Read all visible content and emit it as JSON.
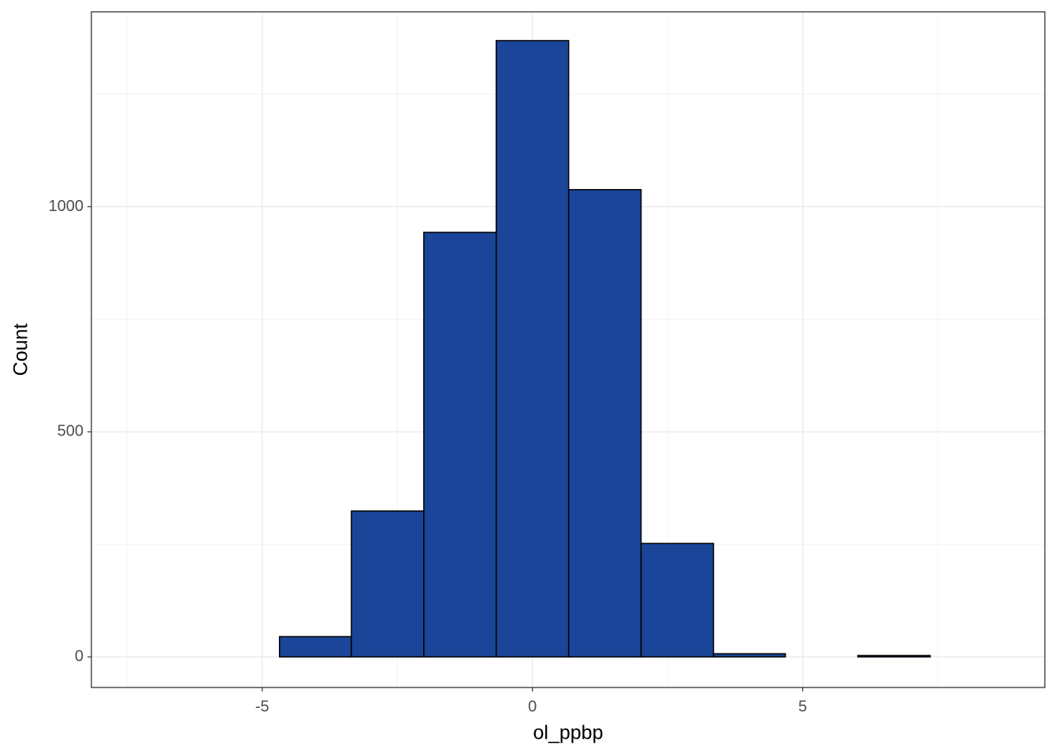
{
  "chart_data": {
    "type": "histogram",
    "x_label": "ol_ppbp",
    "y_label": "Count",
    "bins": [
      -7.36,
      -6.02,
      -4.68,
      -3.35,
      -2.01,
      -0.67,
      0.67,
      2.01,
      3.35,
      4.68,
      6.02,
      7.36,
      8.7
    ],
    "values": [
      0,
      0,
      45,
      324,
      943,
      1369,
      1038,
      252,
      7,
      0,
      3,
      0
    ],
    "color": "#1b4598",
    "edge_color": "#000000",
    "xlim": [
      -8.16,
      9.48
    ],
    "xticks": [
      -5,
      0,
      5
    ],
    "ylim": [
      -68,
      1433
    ],
    "yticks": [
      0,
      500,
      1000
    ],
    "grid": true
  }
}
